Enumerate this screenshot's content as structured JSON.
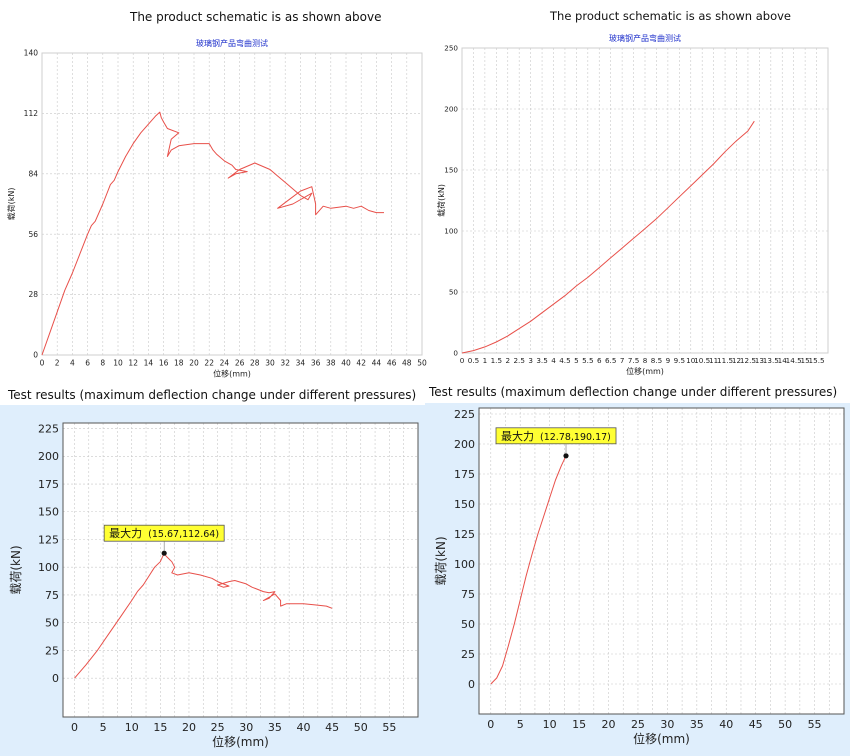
{
  "captions": {
    "top_left": "The product schematic is as shown above",
    "top_right": "The product schematic is as shown above",
    "bottom_left": "Test results  (maximum deflection change under different pressures)",
    "bottom_right": "Test results  (maximum deflection change under different pressures)"
  },
  "colors": {
    "line": "#e8504a",
    "grid": "#c8c8c8",
    "bg_blue": "#dfeefc",
    "tag": "#ffff33"
  },
  "chart_data": [
    {
      "type": "line",
      "title": "玻璃钢产品弯曲测试",
      "xlabel": "位移(mm)",
      "ylabel": "载荷(kN)",
      "xlim": [
        0,
        50
      ],
      "ylim": [
        0,
        140
      ],
      "xticks": [
        "0",
        "2",
        "4",
        "6",
        "8",
        "10",
        "12",
        "14",
        "16",
        "18",
        "20",
        "22",
        "24",
        "26",
        "28",
        "30",
        "32",
        "34",
        "36",
        "38",
        "40",
        "42",
        "44",
        "46",
        "48",
        "50"
      ],
      "yticks": [
        "0",
        "28",
        "56",
        "84",
        "112",
        "140"
      ],
      "grid": true,
      "series": [
        {
          "x": [
            0,
            1,
            2,
            3,
            4,
            5,
            6,
            6.5,
            7,
            8,
            9,
            9.5,
            10,
            11,
            12,
            13,
            14,
            15,
            15.5,
            15.7,
            16,
            16.5,
            18,
            17,
            16.5,
            17,
            18,
            20,
            22,
            22.5,
            23,
            24,
            25,
            25.5,
            27,
            25.5,
            24.5,
            26,
            28,
            30,
            31,
            32,
            33,
            34,
            35,
            35.5,
            33,
            31,
            32.5,
            34,
            35.5,
            36,
            36,
            37,
            38,
            40,
            41,
            42,
            43,
            44,
            45
          ],
          "y": [
            0,
            10,
            20,
            30,
            38,
            47,
            56,
            60,
            62,
            70,
            79,
            81,
            85,
            92,
            98,
            103,
            107,
            111,
            112.6,
            110,
            108,
            105,
            103,
            100,
            92,
            95,
            97,
            98,
            98,
            95,
            93,
            90,
            88,
            86,
            85,
            84,
            82,
            86,
            89,
            86,
            83,
            80,
            77,
            74,
            72,
            75,
            70,
            68,
            72,
            76,
            78,
            70,
            65,
            69,
            68,
            69,
            68,
            69,
            67,
            66,
            66
          ]
        }
      ]
    },
    {
      "type": "line",
      "title": "玻璃钢产品弯曲测试",
      "xlabel": "位移(mm)",
      "ylabel": "载荷(kN)",
      "xlim": [
        0,
        16
      ],
      "ylim": [
        0,
        250
      ],
      "xticks": [
        "0",
        "0.5",
        "1",
        "1.5",
        "2",
        "2.5",
        "3",
        "3.5",
        "4",
        "4.5",
        "5",
        "5.5",
        "6",
        "6.5",
        "7",
        "7.5",
        "8",
        "8.5",
        "9",
        "9.5",
        "10",
        "10.5",
        "11",
        "11.5",
        "12",
        "12.5",
        "13",
        "13.5",
        "14",
        "14.5",
        "15",
        "15.5"
      ],
      "yticks": [
        "0",
        "50",
        "100",
        "150",
        "200",
        "250"
      ],
      "grid": true,
      "series": [
        {
          "x": [
            0,
            0.5,
            1,
            1.5,
            2,
            2.5,
            3,
            3.5,
            4,
            4.5,
            5,
            5.5,
            6,
            6.5,
            7,
            7.5,
            8,
            8.5,
            9,
            9.5,
            10,
            10.5,
            11,
            11.5,
            12,
            12.5,
            12.78
          ],
          "y": [
            0,
            2,
            5,
            9,
            14,
            20,
            26,
            33,
            40,
            47,
            55,
            62,
            70,
            78,
            86,
            94,
            102,
            110,
            119,
            128,
            137,
            146,
            155,
            165,
            174,
            182,
            190
          ]
        }
      ]
    },
    {
      "type": "line",
      "title": "",
      "xlabel": "位移(mm)",
      "ylabel": "载荷(kN)",
      "xlim": [
        -2,
        60
      ],
      "ylim": [
        -35,
        230
      ],
      "xticks": [
        "0",
        "5",
        "10",
        "15",
        "20",
        "25",
        "30",
        "35",
        "40",
        "45",
        "50",
        "55"
      ],
      "yticks": [
        "0",
        "25",
        "50",
        "75",
        "100",
        "125",
        "150",
        "175",
        "200",
        "225"
      ],
      "grid": true,
      "annotation": {
        "label": "最大力",
        "value": "(15.67,112.64)",
        "x": 15.67,
        "y": 112.64
      },
      "series": [
        {
          "x": [
            0,
            2,
            4,
            6,
            8,
            10,
            11,
            12,
            13,
            14,
            15,
            15.67,
            16,
            17,
            17.5,
            17,
            18,
            20,
            22,
            24,
            25,
            26,
            27,
            26,
            25,
            27,
            28,
            30,
            31,
            32,
            33,
            34,
            35,
            34,
            33,
            35,
            36,
            36,
            37,
            40,
            42,
            44,
            45
          ],
          "y": [
            0,
            12,
            25,
            40,
            55,
            70,
            78,
            84,
            92,
            100,
            105,
            112.6,
            110,
            105,
            100,
            95,
            93,
            95,
            93,
            90,
            87,
            85,
            83,
            82,
            84,
            87,
            88,
            85,
            82,
            80,
            78,
            77,
            78,
            72,
            70,
            76,
            70,
            65,
            67,
            67,
            66,
            65,
            63
          ]
        }
      ]
    },
    {
      "type": "line",
      "title": "",
      "xlabel": "位移(mm)",
      "ylabel": "载荷(kN)",
      "xlim": [
        -2,
        60
      ],
      "ylim": [
        -25,
        230
      ],
      "xticks": [
        "0",
        "5",
        "10",
        "15",
        "20",
        "25",
        "30",
        "35",
        "40",
        "45",
        "50",
        "55"
      ],
      "yticks": [
        "0",
        "25",
        "50",
        "75",
        "100",
        "125",
        "150",
        "175",
        "200",
        "225"
      ],
      "grid": true,
      "annotation": {
        "label": "最大力",
        "value": "(12.78,190.17)",
        "x": 12.78,
        "y": 190.17
      },
      "series": [
        {
          "x": [
            0,
            1,
            2,
            3,
            4,
            5,
            6,
            7,
            8,
            9,
            10,
            11,
            12,
            12.78
          ],
          "y": [
            0,
            5,
            15,
            32,
            50,
            70,
            90,
            108,
            125,
            140,
            155,
            170,
            182,
            190.17
          ]
        }
      ]
    }
  ]
}
